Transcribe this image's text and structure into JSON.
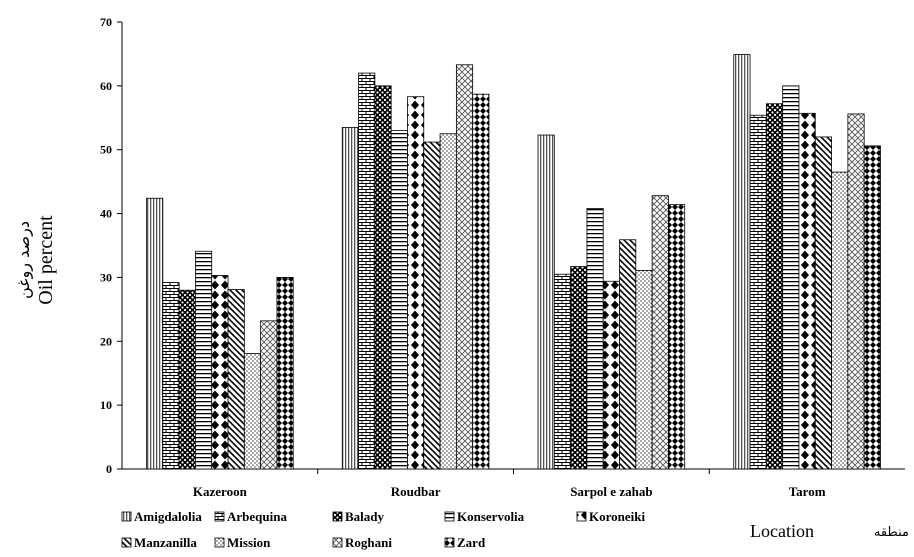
{
  "chart_data": {
    "type": "bar",
    "categories": [
      "Kazeroon",
      "Roudbar",
      "Sarpol e zahab",
      "Tarom"
    ],
    "series": [
      {
        "name": "Amigdalolia",
        "values": [
          42.4,
          53.5,
          52.3,
          64.9
        ],
        "pattern": "vlines"
      },
      {
        "name": "Arbequina",
        "values": [
          29.2,
          62.0,
          30.5,
          55.4
        ],
        "pattern": "bricks"
      },
      {
        "name": "Balady",
        "values": [
          28.0,
          60.0,
          31.7,
          57.2
        ],
        "pattern": "diamondgrid"
      },
      {
        "name": "Konservolia",
        "values": [
          34.1,
          53.0,
          40.8,
          60.0
        ],
        "pattern": "hlines"
      },
      {
        "name": "Koroneiki",
        "values": [
          30.3,
          58.3,
          29.4,
          55.7
        ],
        "pattern": "diamonds"
      },
      {
        "name": "Manzanilla",
        "values": [
          28.1,
          51.2,
          35.9,
          52.0
        ],
        "pattern": "diag"
      },
      {
        "name": "Mission",
        "values": [
          18.1,
          52.5,
          31.1,
          46.5
        ],
        "pattern": "dots"
      },
      {
        "name": "Roghani",
        "values": [
          23.2,
          63.3,
          42.8,
          55.6
        ],
        "pattern": "crosshatch"
      },
      {
        "name": "Zard",
        "values": [
          30.0,
          58.7,
          41.4,
          50.6
        ],
        "pattern": "checker"
      }
    ],
    "ylim": [
      0,
      70
    ],
    "yticks": [
      0,
      10,
      20,
      30,
      40,
      50,
      60,
      70
    ],
    "ylabel_fa": "درصد روغن",
    "ylabel_en": "Oil percent",
    "xlabel_en": "Location",
    "xlabel_fa": "منطقه",
    "grid": false,
    "legend_placement": "bottom"
  }
}
